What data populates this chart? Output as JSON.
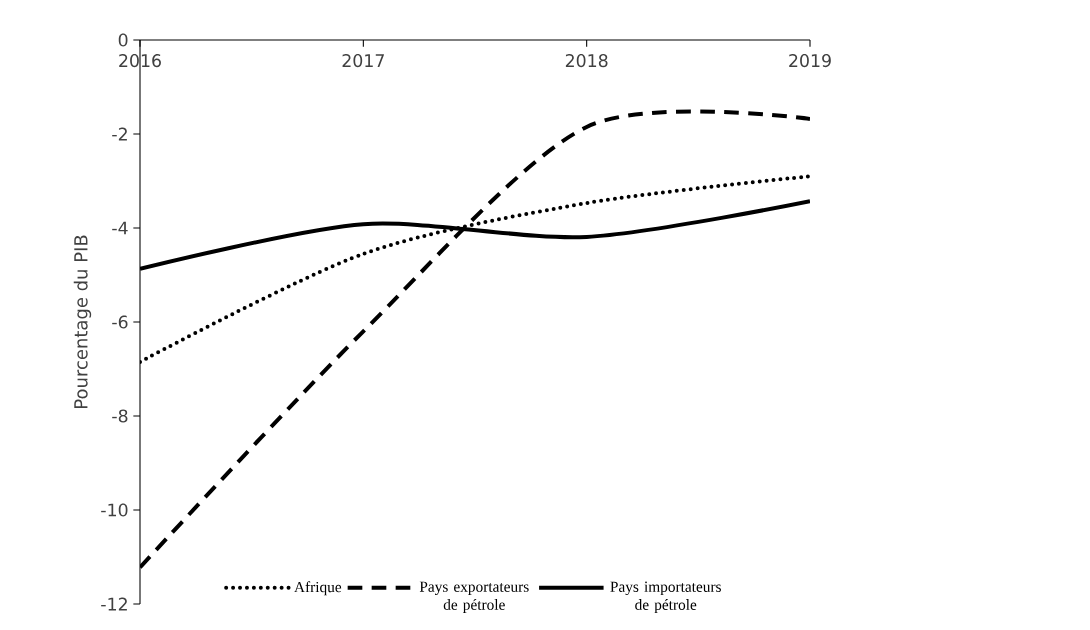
{
  "chart_data": {
    "type": "line",
    "ylabel": "Pourcentage du PIB",
    "x": [
      2016,
      2017,
      2018,
      2019
    ],
    "xlim": [
      2016,
      2019
    ],
    "xticks": [
      2016,
      2017,
      2018,
      2019
    ],
    "ylim": [
      -12,
      0
    ],
    "yticks": [
      -12,
      -10,
      -8,
      -6,
      -4,
      -2,
      0
    ],
    "series": [
      {
        "name": "Afrique",
        "color": "#000000",
        "line_style": "dotted",
        "values": [
          -6.85,
          -4.55,
          -3.47,
          -2.9
        ]
      },
      {
        "name": "Pays exportateurs de pétrole",
        "color": "#000000",
        "line_style": "dashed",
        "values": [
          -11.22,
          -6.2,
          -1.85,
          -1.68
        ]
      },
      {
        "name": "Pays importateurs de pétrole",
        "color": "#000000",
        "line_style": "solid",
        "values": [
          -4.87,
          -3.92,
          -4.19,
          -3.43
        ]
      }
    ],
    "grid": false,
    "legend": "bottom",
    "marker": "none"
  }
}
